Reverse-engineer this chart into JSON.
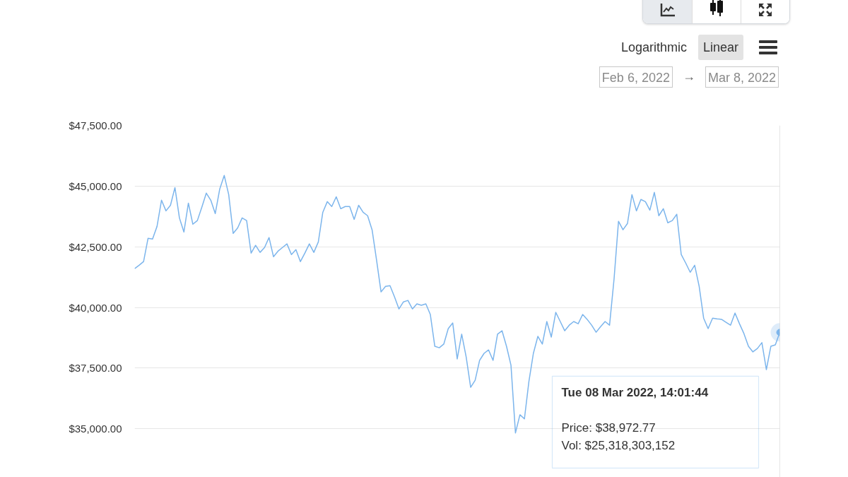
{
  "chart_data": {
    "type": "line",
    "categories": [
      null,
      null,
      null,
      null,
      null,
      null,
      null,
      null,
      null,
      null,
      null,
      null,
      null,
      null,
      null,
      null,
      null,
      null,
      null,
      null,
      null,
      null,
      null,
      null,
      null,
      null,
      null,
      null,
      null,
      null,
      null,
      null,
      null,
      null,
      null,
      null,
      null,
      null,
      null,
      null,
      null,
      null,
      null,
      null,
      null,
      null,
      null,
      null,
      null,
      null,
      null,
      null,
      null,
      null,
      null,
      null,
      null,
      null,
      null,
      null,
      null,
      null,
      null,
      null,
      null,
      null,
      null,
      null,
      null,
      null,
      null,
      null,
      null,
      null,
      null,
      null,
      null,
      null,
      null,
      null,
      null,
      null,
      null,
      null,
      null,
      null,
      null,
      null,
      null,
      null,
      null,
      null,
      null,
      null,
      null,
      null,
      null,
      null,
      null,
      null,
      null,
      null,
      null,
      null,
      null,
      null,
      null,
      null,
      null,
      null,
      null,
      null,
      null,
      null,
      null,
      null,
      null,
      null,
      null,
      null,
      null,
      null,
      null,
      null,
      null,
      null,
      null,
      null,
      null,
      null,
      null,
      null,
      null,
      null,
      null,
      null,
      null,
      null,
      null,
      null,
      null,
      null,
      null,
      null,
      null
    ],
    "series": [
      {
        "color": "#7cb5ec",
        "values": [
          41600,
          41740,
          41890,
          42850,
          42820,
          43340,
          44420,
          43980,
          44210,
          44940,
          43690,
          43110,
          44300,
          43430,
          43580,
          44130,
          44710,
          44420,
          43870,
          44880,
          45440,
          44650,
          43050,
          43280,
          43690,
          43580,
          42240,
          42560,
          42270,
          42470,
          42880,
          42090,
          42320,
          42470,
          42620,
          42180,
          42380,
          41890,
          42240,
          42620,
          42270,
          42700,
          43920,
          44360,
          44160,
          44560,
          44070,
          44160,
          44160,
          43630,
          44210,
          43920,
          43780,
          43200,
          41950,
          40640,
          40870,
          40900,
          40440,
          39940,
          40230,
          40290,
          39940,
          40150,
          40090,
          40150,
          39710,
          38400,
          38340,
          38490,
          39130,
          39360,
          37880,
          38900,
          37960,
          36710,
          37000,
          37820,
          38110,
          38250,
          37820,
          38900,
          39040,
          38400,
          37620,
          34830,
          35580,
          35410,
          36950,
          38110,
          38810,
          38490,
          39420,
          38780,
          39800,
          39420,
          39040,
          39270,
          39420,
          39330,
          39710,
          39510,
          39270,
          38980,
          39210,
          39420,
          39270,
          41160,
          43550,
          43200,
          43460,
          44650,
          43980,
          44450,
          44360,
          44010,
          44740,
          43780,
          44070,
          43490,
          43580,
          43840,
          42180,
          41830,
          41450,
          41740,
          40870,
          39560,
          39130,
          39560,
          39530,
          39510,
          39390,
          39270,
          39770,
          39330,
          38920,
          38400,
          38170,
          38310,
          38550,
          37440,
          38400,
          38460,
          38972.77
        ]
      }
    ],
    "ylim": [
      33000,
      47500
    ],
    "yticks": [
      {
        "value": 35000,
        "label": "$35,000.00"
      },
      {
        "value": 37500,
        "label": "$37,500.00"
      },
      {
        "value": 40000,
        "label": "$40,000.00"
      },
      {
        "value": 42500,
        "label": "$42,500.00"
      },
      {
        "value": 45000,
        "label": "$45,000.00"
      },
      {
        "value": 47500,
        "label": "$47,500.00"
      }
    ],
    "grid": "y",
    "log": false,
    "tick_labels": "y",
    "annotations": [
      "Logarithmic",
      "Linear",
      "Feb 6, 2022",
      "→",
      "Mar 8, 2022",
      "Tue 08 Mar 2022, 14:01:44",
      "Price: $38,972.77",
      "Vol: $25,318,303,152"
    ]
  }
}
